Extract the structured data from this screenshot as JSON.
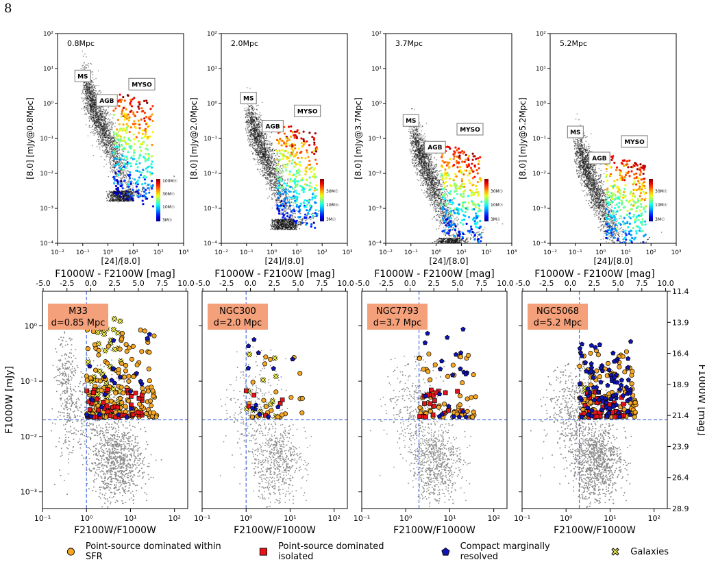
{
  "page_number": "8",
  "marker_colors": {
    "sfr": "#f5a623",
    "isolated": "#e8121b",
    "compact": "#0f14b4",
    "galaxies": "#f2f04a",
    "field": "#8c8c8c",
    "cut_line": "#4a6fe0",
    "label_box": "#f4a07a",
    "annot_green": "#1a8a1a"
  },
  "legend": [
    {
      "key": "sfr",
      "label": "Point-source dominated within SFR",
      "marker": "circle"
    },
    {
      "key": "isolated",
      "label": "Point-source dominated isolated",
      "marker": "square"
    },
    {
      "key": "compact",
      "label": "Compact marginally resolved",
      "marker": "pentagon"
    },
    {
      "key": "galaxies",
      "label": "Galaxies",
      "marker": "x-square"
    }
  ],
  "chart_data": [
    {
      "type": "scatter",
      "panel": "top",
      "label": "0.8Mpc",
      "xlabel": "[24]/[8.0]",
      "ylabel": "[8.0] [mJy@0.8Mpc]",
      "xscale": "log",
      "yscale": "log",
      "xlim": [
        0.01,
        1000
      ],
      "ylim": [
        0.0001,
        100
      ],
      "x_ticks": [
        "10⁻²",
        "10⁻¹",
        "10⁰",
        "10¹",
        "10²",
        "10³"
      ],
      "y_ticks": [
        "10⁻⁴",
        "10⁻³",
        "10⁻²",
        "10⁻¹",
        "10⁰",
        "10¹",
        "10²"
      ],
      "annotations": [
        {
          "text": "MS",
          "x": 0.1,
          "y": 6
        },
        {
          "text": "AGB",
          "x": 0.9,
          "y": 1.2
        },
        {
          "text": "MYSO",
          "x": 22,
          "y": 3.5
        }
      ],
      "colorbar": {
        "colormap": "jet",
        "ticks": [
          "100M☉",
          "30M☉",
          "10M☉",
          "3M☉"
        ]
      }
    },
    {
      "type": "scatter",
      "panel": "top",
      "label": "2.0Mpc",
      "xlabel": "[24]/[8.0]",
      "ylabel": "[8.0] [mJy@2.0Mpc]",
      "xscale": "log",
      "yscale": "log",
      "xlim": [
        0.01,
        1000
      ],
      "ylim": [
        0.0001,
        100
      ],
      "x_ticks": [
        "10⁻²",
        "10⁻¹",
        "10⁰",
        "10¹",
        "10²",
        "10³"
      ],
      "y_ticks": [
        "10⁻⁴",
        "10⁻³",
        "10⁻²",
        "10⁻¹",
        "10⁰",
        "10¹",
        "10²"
      ],
      "annotations": [
        {
          "text": "MS",
          "x": 0.12,
          "y": 1.4
        },
        {
          "text": "AGB",
          "x": 1.1,
          "y": 0.22
        },
        {
          "text": "MYSO",
          "x": 26,
          "y": 0.6
        }
      ],
      "colorbar": {
        "colormap": "jet",
        "ticks": [
          "30M☉",
          "10M☉",
          "3M☉"
        ]
      }
    },
    {
      "type": "scatter",
      "panel": "top",
      "label": "3.7Mpc",
      "xlabel": "[24]/[8.0]",
      "ylabel": "[8.0] [mJy@3.7Mpc]",
      "xscale": "log",
      "yscale": "log",
      "xlim": [
        0.01,
        1000
      ],
      "ylim": [
        0.0001,
        100
      ],
      "x_ticks": [
        "10⁻²",
        "10⁻¹",
        "10⁰",
        "10¹",
        "10²",
        "10³"
      ],
      "y_ticks": [
        "10⁻⁴",
        "10⁻³",
        "10⁻²",
        "10⁻¹",
        "10⁰",
        "10¹",
        "10²"
      ],
      "annotations": [
        {
          "text": "MS",
          "x": 0.1,
          "y": 0.32
        },
        {
          "text": "AGB",
          "x": 0.9,
          "y": 0.055
        },
        {
          "text": "MYSO",
          "x": 22,
          "y": 0.18
        }
      ],
      "colorbar": {
        "colormap": "jet",
        "ticks": [
          "30M☉",
          "10M☉",
          "3M☉"
        ]
      }
    },
    {
      "type": "scatter",
      "panel": "top",
      "label": "5.2Mpc",
      "xlabel": "[24]/[8.0]",
      "ylabel": "[8.0] [mJy@5.2Mpc]",
      "xscale": "log",
      "yscale": "log",
      "xlim": [
        0.01,
        1000
      ],
      "ylim": [
        0.0001,
        100
      ],
      "x_ticks": [
        "10⁻²",
        "10⁻¹",
        "10⁰",
        "10¹",
        "10²",
        "10³"
      ],
      "y_ticks": [
        "10⁻⁴",
        "10⁻³",
        "10⁻²",
        "10⁻¹",
        "10⁰",
        "10¹",
        "10²"
      ],
      "annotations": [
        {
          "text": "MS",
          "x": 0.1,
          "y": 0.15
        },
        {
          "text": "AGB",
          "x": 0.9,
          "y": 0.027
        },
        {
          "text": "MYSO",
          "x": 22,
          "y": 0.08
        }
      ],
      "colorbar": {
        "colormap": "jet",
        "ticks": [
          "30M☉",
          "10M☉",
          "3M☉"
        ]
      }
    },
    {
      "type": "scatter",
      "panel": "bottom",
      "label_lines": [
        "M33",
        "d=0.85 Mpc"
      ],
      "xlabel": "F2100W/F1000W",
      "ylabel": "F1000W [mJy]",
      "top_xlabel": "F1000W - F2100W [mag]",
      "xscale": "log",
      "yscale": "log",
      "xlim": [
        0.1,
        200
      ],
      "ylim": [
        0.0005,
        4.2
      ],
      "x_ticks": [
        "10⁻¹",
        "10⁰",
        "10¹",
        "10²"
      ],
      "y_ticks": [
        "10⁻³",
        "10⁻²",
        "10⁻¹",
        "10⁰"
      ],
      "top_ticks": [
        "-5.0",
        "-2.5",
        "0.0",
        "2.5",
        "5.0",
        "7.5",
        "10.0"
      ],
      "cuts": {
        "x": 1.0,
        "y": 0.02
      }
    },
    {
      "type": "scatter",
      "panel": "bottom",
      "label_lines": [
        "NGC300",
        "d=2.0 Mpc"
      ],
      "xlabel": "F2100W/F1000W",
      "top_xlabel": "F1000W - F2100W [mag]",
      "xscale": "log",
      "yscale": "log",
      "xlim": [
        0.1,
        200
      ],
      "ylim": [
        0.0005,
        4.2
      ],
      "x_ticks": [
        "10⁻¹",
        "10⁰",
        "10¹",
        "10²"
      ],
      "top_ticks": [
        "-5.0",
        "-2.5",
        "0.0",
        "2.5",
        "5.0",
        "7.5",
        "10.0"
      ],
      "cuts": {
        "x": 1.0,
        "y": 0.02
      }
    },
    {
      "type": "scatter",
      "panel": "bottom",
      "label_lines": [
        "NGC7793",
        "d=3.7 Mpc"
      ],
      "xlabel": "F2100W/F1000W",
      "top_xlabel": "F1000W - F2100W [mag]",
      "xscale": "log",
      "yscale": "log",
      "xlim": [
        0.1,
        200
      ],
      "ylim": [
        0.0005,
        4.2
      ],
      "x_ticks": [
        "10⁻¹",
        "10⁰",
        "10¹",
        "10²"
      ],
      "top_ticks": [
        "-5.0",
        "-2.5",
        "0.0",
        "2.5",
        "5.0",
        "7.5",
        "10.0"
      ],
      "cuts": {
        "x": 2.0,
        "y": 0.02
      }
    },
    {
      "type": "scatter",
      "panel": "bottom",
      "label_lines": [
        "NGC5068",
        "d=5.2 Mpc"
      ],
      "xlabel": "F2100W/F1000W",
      "top_xlabel": "F1000W - F2100W [mag]",
      "right_ylabel": "F1000W [mag]",
      "xscale": "log",
      "yscale": "log",
      "xlim": [
        0.1,
        200
      ],
      "ylim": [
        0.0005,
        4.2
      ],
      "x_ticks": [
        "10⁻¹",
        "10⁰",
        "10¹",
        "10²"
      ],
      "top_ticks": [
        "-5.0",
        "-2.5",
        "0.0",
        "2.5",
        "5.0",
        "7.5",
        "10.0"
      ],
      "right_ticks": [
        "11.4",
        "13.9",
        "16.4",
        "18.9",
        "21.4",
        "23.9",
        "26.4",
        "28.9"
      ],
      "cuts": {
        "x": 2.0,
        "y": 0.02
      }
    }
  ]
}
